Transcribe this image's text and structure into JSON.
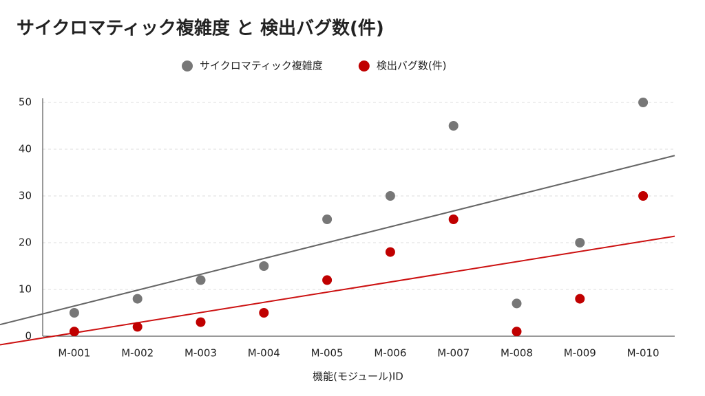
{
  "chart_data": {
    "type": "scatter",
    "title": "サイクロマティック複雑度 と 検出バグ数(件)",
    "x_label": "機能(モジュール)ID",
    "categories": [
      "M-001",
      "M-002",
      "M-003",
      "M-004",
      "M-005",
      "M-006",
      "M-007",
      "M-008",
      "M-009",
      "M-010"
    ],
    "series": [
      {
        "name": "サイクロマティック複雑度",
        "color": "#777777",
        "line_color": "#666666",
        "values": [
          5,
          8,
          12,
          15,
          25,
          30,
          45,
          7,
          20,
          50
        ]
      },
      {
        "name": "検出バグ数(件)",
        "color": "#c00000",
        "line_color": "#cc1111",
        "values": [
          1,
          2,
          3,
          5,
          12,
          18,
          25,
          1,
          8,
          30
        ]
      }
    ],
    "trendline": true,
    "ylim": [
      0,
      50
    ],
    "yticks": [
      0,
      10,
      20,
      30,
      40,
      50
    ],
    "grid": true
  }
}
